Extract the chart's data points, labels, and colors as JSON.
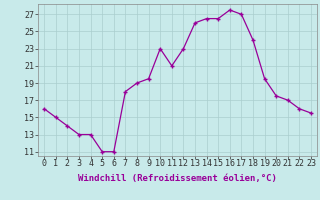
{
  "x": [
    0,
    1,
    2,
    3,
    4,
    5,
    6,
    7,
    8,
    9,
    10,
    11,
    12,
    13,
    14,
    15,
    16,
    17,
    18,
    19,
    20,
    21,
    22,
    23
  ],
  "y": [
    16,
    15,
    14,
    13,
    13,
    11,
    11,
    18,
    19,
    19.5,
    23,
    21,
    23,
    26,
    26.5,
    26.5,
    27.5,
    27,
    24,
    19.5,
    17.5,
    17,
    16,
    15.5
  ],
  "line_color": "#990099",
  "marker": "+",
  "bg_color": "#c8eaea",
  "grid_color": "#aacece",
  "ylabel_ticks": [
    11,
    13,
    15,
    17,
    19,
    21,
    23,
    25,
    27
  ],
  "xlabel": "Windchill (Refroidissement éolien,°C)",
  "xlabel_fontsize": 6.5,
  "tick_fontsize": 6.0,
  "ylim": [
    10.5,
    28.2
  ],
  "xlim": [
    -0.5,
    23.5
  ]
}
